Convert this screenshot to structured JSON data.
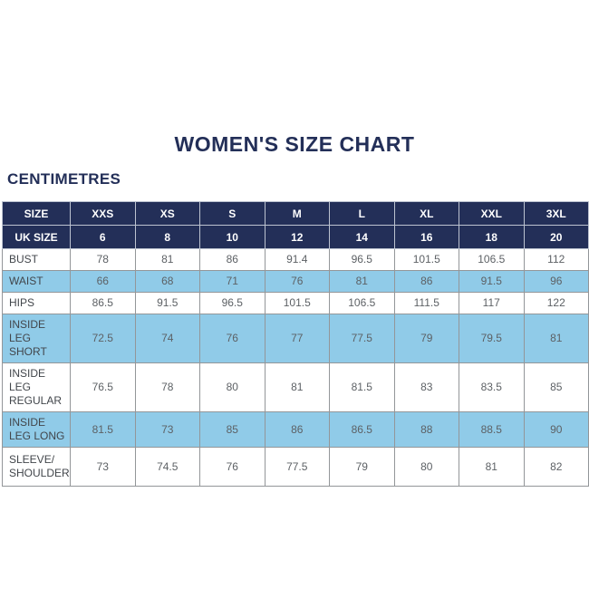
{
  "page": {
    "title": "WOMEN'S SIZE CHART",
    "unit_label": "CENTIMETRES"
  },
  "colors": {
    "navy_header": "#232f58",
    "light_blue_row": "#90cbe8",
    "white_row": "#ffffff",
    "header_text": "#ffffff",
    "body_text": "#5d6165",
    "label_text": "#42464b"
  },
  "table": {
    "header_rows": [
      {
        "label": "SIZE",
        "values": [
          "XXS",
          "XS",
          "S",
          "M",
          "L",
          "XL",
          "XXL",
          "3XL"
        ]
      },
      {
        "label": "UK SIZE",
        "values": [
          "6",
          "8",
          "10",
          "12",
          "14",
          "16",
          "18",
          "20"
        ]
      }
    ],
    "rows": [
      {
        "label": "BUST",
        "values": [
          "78",
          "81",
          "86",
          "91.4",
          "96.5",
          "101.5",
          "106.5",
          "112"
        ]
      },
      {
        "label": "WAIST",
        "values": [
          "66",
          "68",
          "71",
          "76",
          "81",
          "86",
          "91.5",
          "96"
        ]
      },
      {
        "label": "HIPS",
        "values": [
          "86.5",
          "91.5",
          "96.5",
          "101.5",
          "106.5",
          "111.5",
          "117",
          "122"
        ]
      },
      {
        "label": "INSIDE LEG SHORT",
        "values": [
          "72.5",
          "74",
          "76",
          "77",
          "77.5",
          "79",
          "79.5",
          "81"
        ]
      },
      {
        "label": "INSIDE LEG REGULAR",
        "values": [
          "76.5",
          "78",
          "80",
          "81",
          "81.5",
          "83",
          "83.5",
          "85"
        ]
      },
      {
        "label": "INSIDE LEG LONG",
        "values": [
          "81.5",
          "73",
          "85",
          "86",
          "86.5",
          "88",
          "88.5",
          "90"
        ]
      },
      {
        "label": "SLEEVE/ SHOULDER",
        "values": [
          "73",
          "74.5",
          "76",
          "77.5",
          "79",
          "80",
          "81",
          "82"
        ]
      }
    ]
  }
}
